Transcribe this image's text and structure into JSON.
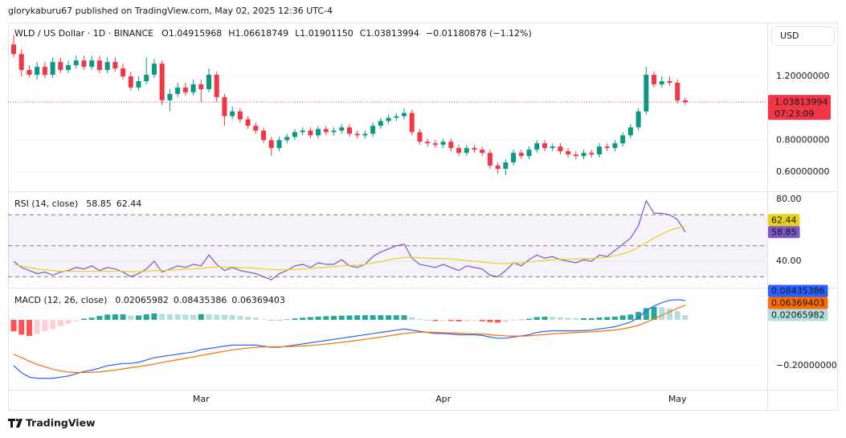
{
  "header": {
    "publisher_line": "glorykaburu67 published on TradingView.com, May 02, 2025 12:36 UTC-4"
  },
  "footer": {
    "brand": "TradingView"
  },
  "chart_data": [
    {
      "type": "candlestick",
      "title": "WLD / US Dollar · 1D · BINANCE",
      "currency": "USD",
      "legend": [
        {
          "prefix": "O",
          "label": "1.04915968"
        },
        {
          "prefix": "H",
          "label": "1.06618749"
        },
        {
          "prefix": "L",
          "label": "1.01901150"
        },
        {
          "prefix": "C",
          "label": "1.03813994"
        }
      ],
      "change": "−0.01180878 (−1.12%)",
      "countdown": "07:23:09",
      "categories": [
        null,
        null,
        null,
        null,
        null,
        null,
        null,
        null,
        null,
        null,
        null,
        null,
        null,
        null,
        null,
        null,
        null,
        null,
        null,
        null,
        null,
        null,
        null,
        null,
        "Mar",
        null,
        null,
        null,
        null,
        null,
        null,
        null,
        null,
        null,
        null,
        null,
        null,
        null,
        null,
        null,
        null,
        null,
        null,
        null,
        null,
        null,
        null,
        null,
        null,
        null,
        null,
        null,
        null,
        null,
        null,
        "Apr",
        null,
        null,
        null,
        null,
        null,
        null,
        null,
        null,
        null,
        null,
        null,
        null,
        null,
        null,
        null,
        null,
        null,
        null,
        null,
        null,
        null,
        null,
        null,
        null,
        null,
        null,
        null,
        null,
        null,
        "May",
        null
      ],
      "open": [
        1.4,
        1.34,
        1.24,
        1.21,
        1.26,
        1.21,
        1.29,
        1.24,
        1.27,
        1.3,
        1.26,
        1.3,
        1.24,
        1.29,
        1.25,
        1.2,
        1.13,
        1.17,
        1.21,
        1.28,
        1.05,
        1.09,
        1.13,
        1.1,
        1.15,
        1.12,
        1.21,
        1.07,
        0.95,
        0.98,
        0.93,
        0.89,
        0.86,
        0.8,
        0.75,
        0.8,
        0.82,
        0.85,
        0.86,
        0.83,
        0.87,
        0.85,
        0.86,
        0.88,
        0.84,
        0.83,
        0.84,
        0.89,
        0.92,
        0.94,
        0.95,
        0.97,
        0.85,
        0.79,
        0.78,
        0.77,
        0.79,
        0.75,
        0.72,
        0.75,
        0.74,
        0.72,
        0.64,
        0.62,
        0.66,
        0.72,
        0.7,
        0.74,
        0.78,
        0.75,
        0.76,
        0.73,
        0.71,
        0.7,
        0.72,
        0.71,
        0.76,
        0.75,
        0.78,
        0.83,
        0.88,
        0.98,
        1.21,
        1.15,
        1.17,
        1.16,
        1.04915968
      ],
      "high": [
        1.46,
        1.37,
        1.27,
        1.29,
        1.29,
        1.32,
        1.32,
        1.3,
        1.33,
        1.33,
        1.33,
        1.33,
        1.32,
        1.32,
        1.28,
        1.23,
        1.2,
        1.32,
        1.31,
        1.3,
        1.12,
        1.16,
        1.16,
        1.18,
        1.18,
        1.25,
        1.23,
        1.09,
        1.01,
        1.0,
        0.95,
        0.91,
        0.88,
        0.82,
        0.82,
        0.84,
        0.87,
        0.88,
        0.88,
        0.89,
        0.89,
        0.88,
        0.9,
        0.9,
        0.86,
        0.86,
        0.91,
        0.94,
        0.96,
        0.97,
        1.0,
        0.99,
        0.87,
        0.81,
        0.8,
        0.81,
        0.81,
        0.77,
        0.77,
        0.77,
        0.76,
        0.74,
        0.66,
        0.68,
        0.74,
        0.74,
        0.76,
        0.8,
        0.8,
        0.78,
        0.78,
        0.75,
        0.73,
        0.74,
        0.74,
        0.78,
        0.78,
        0.8,
        0.85,
        0.9,
        1.0,
        1.26,
        1.23,
        1.2,
        1.2,
        1.18,
        1.06618749
      ],
      "low": [
        1.32,
        1.2,
        1.19,
        1.18,
        1.19,
        1.19,
        1.22,
        1.22,
        1.25,
        1.24,
        1.24,
        1.22,
        1.22,
        1.23,
        1.18,
        1.11,
        1.11,
        1.15,
        1.19,
        1.02,
        0.98,
        1.07,
        1.08,
        1.08,
        1.04,
        1.1,
        1.04,
        0.89,
        0.93,
        0.91,
        0.87,
        0.84,
        0.78,
        0.7,
        0.73,
        0.78,
        0.8,
        0.83,
        0.81,
        0.81,
        0.83,
        0.83,
        0.84,
        0.82,
        0.81,
        0.81,
        0.82,
        0.87,
        0.9,
        0.92,
        0.93,
        0.83,
        0.77,
        0.76,
        0.75,
        0.75,
        0.73,
        0.7,
        0.7,
        0.72,
        0.7,
        0.62,
        0.59,
        0.58,
        0.64,
        0.68,
        0.68,
        0.72,
        0.73,
        0.73,
        0.71,
        0.69,
        0.68,
        0.68,
        0.69,
        0.69,
        0.73,
        0.73,
        0.76,
        0.81,
        0.86,
        0.96,
        1.13,
        1.13,
        1.14,
        1.03,
        1.0190115
      ],
      "close": [
        1.34,
        1.24,
        1.21,
        1.26,
        1.21,
        1.29,
        1.24,
        1.27,
        1.3,
        1.26,
        1.3,
        1.24,
        1.29,
        1.25,
        1.2,
        1.13,
        1.17,
        1.21,
        1.28,
        1.05,
        1.09,
        1.13,
        1.1,
        1.15,
        1.12,
        1.21,
        1.07,
        0.95,
        0.98,
        0.93,
        0.89,
        0.86,
        0.8,
        0.75,
        0.8,
        0.82,
        0.85,
        0.86,
        0.83,
        0.87,
        0.85,
        0.86,
        0.88,
        0.84,
        0.83,
        0.84,
        0.89,
        0.92,
        0.94,
        0.95,
        0.97,
        0.85,
        0.79,
        0.78,
        0.77,
        0.79,
        0.75,
        0.72,
        0.75,
        0.74,
        0.72,
        0.64,
        0.62,
        0.66,
        0.72,
        0.7,
        0.74,
        0.78,
        0.75,
        0.76,
        0.73,
        0.71,
        0.7,
        0.72,
        0.71,
        0.76,
        0.75,
        0.78,
        0.83,
        0.88,
        0.98,
        1.21,
        1.15,
        1.17,
        1.16,
        1.049,
        1.03813994
      ],
      "colors": {
        "up": "#089981",
        "down": "#f23645"
      },
      "ylim": [
        0.479,
        1.538
      ],
      "yticks": [
        {
          "value": 1.2,
          "label": "1.20000000"
        },
        {
          "value": 0.8,
          "label": "0.80000000"
        },
        {
          "value": 0.6,
          "label": "0.60000000"
        }
      ],
      "grid": true
    },
    {
      "type": "line",
      "title": "RSI (14, close)",
      "series": [
        {
          "color": "#7e57c2",
          "style": "line",
          "values": [
            40,
            36,
            34,
            32,
            33,
            31,
            33,
            34,
            36,
            35,
            37,
            34,
            36,
            35,
            33,
            30,
            32,
            35,
            40,
            33,
            35,
            37,
            36,
            38,
            37,
            44,
            38,
            34,
            36,
            34,
            33,
            32,
            30,
            28,
            32,
            34,
            37,
            38,
            36,
            39,
            38,
            38,
            41,
            37,
            36,
            38,
            43,
            46,
            48,
            50,
            51,
            42,
            38,
            37,
            36,
            38,
            36,
            34,
            37,
            36,
            35,
            31,
            30,
            34,
            39,
            37,
            41,
            44,
            42,
            43,
            41,
            40,
            39,
            41,
            40,
            44,
            43,
            47,
            51,
            55,
            63,
            79,
            71,
            71,
            70,
            67,
            58.85
          ]
        },
        {
          "color": "#e8d31a",
          "style": "line",
          "values": [
            38,
            37,
            36,
            35,
            34.5,
            34,
            33.5,
            33.5,
            33.5,
            33.5,
            33.5,
            33.5,
            33.5,
            33.5,
            33.5,
            33.3,
            33.2,
            33.5,
            34,
            34,
            34.2,
            34.5,
            34.8,
            35,
            35.3,
            36,
            36.3,
            36.2,
            36.2,
            36,
            35.8,
            35.5,
            35,
            34.6,
            34.5,
            34.5,
            34.7,
            35,
            35.2,
            35.8,
            36.2,
            36.5,
            37,
            37.3,
            37.5,
            38,
            38.8,
            39.8,
            40.8,
            41.8,
            42.5,
            42.5,
            42.3,
            42,
            41.8,
            41.8,
            41.5,
            41,
            40.5,
            40,
            39.5,
            39,
            38.5,
            38.5,
            38.8,
            39,
            39.5,
            40,
            40.5,
            41,
            41.2,
            41.3,
            41.4,
            41.6,
            41.8,
            42.2,
            42.6,
            43.5,
            44.8,
            46.5,
            49,
            52,
            55,
            57.5,
            60,
            61.5,
            62.44
          ]
        }
      ],
      "levels": [
        70,
        50,
        30
      ],
      "band_color": "#7e57c2",
      "ylim": [
        22.9,
        85.2
      ],
      "yticks": [
        {
          "value": 80,
          "label": "80.00"
        },
        {
          "value": 40,
          "label": "40.00"
        }
      ],
      "grid": true
    },
    {
      "type": "line",
      "title": "MACD (12, 26, close)",
      "series": [
        {
          "style": "histogram",
          "colors": {
            "grow_above": "#26a69a",
            "fall_above": "#b2dfdb",
            "grow_below": "#ff5252",
            "fall_below": "#ffcdd2"
          },
          "values": [
            -0.05,
            -0.065,
            -0.07,
            -0.06,
            -0.05,
            -0.04,
            -0.028,
            -0.017,
            -0.005,
            0.005,
            0.009,
            0.017,
            0.023,
            0.024,
            0.024,
            0.019,
            0.019,
            0.024,
            0.028,
            0.026,
            0.025,
            0.024,
            0.023,
            0.022,
            0.025,
            0.024,
            0.023,
            0.022,
            0.021,
            0.017,
            0.013,
            0.01,
            0.003,
            -0.002,
            -0.002,
            0.002,
            0.006,
            0.009,
            0.012,
            0.014,
            0.016,
            0.017,
            0.018,
            0.019,
            0.02,
            0.02,
            0.02,
            0.02,
            0.02,
            0.02,
            0.02,
            0.011,
            0.004,
            -0.001,
            -0.005,
            -0.004,
            -0.005,
            -0.007,
            -0.005,
            -0.004,
            -0.006,
            -0.01,
            -0.012,
            -0.01,
            -0.004,
            0.001,
            0.005,
            0.012,
            0.014,
            0.013,
            0.011,
            0.009,
            0.007,
            0.007,
            0.007,
            0.01,
            0.012,
            0.014,
            0.019,
            0.023,
            0.034,
            0.051,
            0.056,
            0.055,
            0.05,
            0.038,
            0.02065982
          ]
        },
        {
          "color": "#2962ff",
          "style": "line",
          "values": [
            -0.2,
            -0.23,
            -0.25,
            -0.255,
            -0.255,
            -0.255,
            -0.25,
            -0.245,
            -0.235,
            -0.225,
            -0.22,
            -0.21,
            -0.2,
            -0.195,
            -0.19,
            -0.19,
            -0.185,
            -0.175,
            -0.165,
            -0.16,
            -0.155,
            -0.15,
            -0.145,
            -0.14,
            -0.13,
            -0.125,
            -0.12,
            -0.115,
            -0.11,
            -0.11,
            -0.11,
            -0.11,
            -0.115,
            -0.12,
            -0.12,
            -0.115,
            -0.11,
            -0.105,
            -0.1,
            -0.095,
            -0.09,
            -0.085,
            -0.08,
            -0.075,
            -0.07,
            -0.065,
            -0.06,
            -0.055,
            -0.05,
            -0.045,
            -0.04,
            -0.045,
            -0.05,
            -0.055,
            -0.06,
            -0.06,
            -0.062,
            -0.065,
            -0.065,
            -0.065,
            -0.068,
            -0.075,
            -0.08,
            -0.08,
            -0.075,
            -0.07,
            -0.065,
            -0.055,
            -0.05,
            -0.048,
            -0.048,
            -0.048,
            -0.048,
            -0.047,
            -0.045,
            -0.04,
            -0.035,
            -0.03,
            -0.02,
            -0.01,
            0.01,
            0.04,
            0.06,
            0.075,
            0.085,
            0.088,
            0.08435386
          ]
        },
        {
          "color": "#ff6d00",
          "style": "line",
          "values": [
            -0.15,
            -0.165,
            -0.18,
            -0.195,
            -0.205,
            -0.215,
            -0.222,
            -0.228,
            -0.23,
            -0.23,
            -0.229,
            -0.227,
            -0.223,
            -0.219,
            -0.214,
            -0.209,
            -0.204,
            -0.199,
            -0.193,
            -0.186,
            -0.18,
            -0.174,
            -0.168,
            -0.162,
            -0.155,
            -0.149,
            -0.143,
            -0.137,
            -0.131,
            -0.127,
            -0.123,
            -0.12,
            -0.118,
            -0.118,
            -0.118,
            -0.117,
            -0.116,
            -0.114,
            -0.112,
            -0.109,
            -0.106,
            -0.102,
            -0.098,
            -0.094,
            -0.09,
            -0.085,
            -0.08,
            -0.075,
            -0.07,
            -0.065,
            -0.06,
            -0.056,
            -0.054,
            -0.054,
            -0.055,
            -0.056,
            -0.057,
            -0.058,
            -0.06,
            -0.061,
            -0.062,
            -0.065,
            -0.068,
            -0.07,
            -0.071,
            -0.071,
            -0.07,
            -0.067,
            -0.064,
            -0.061,
            -0.059,
            -0.057,
            -0.055,
            -0.054,
            -0.052,
            -0.05,
            -0.047,
            -0.044,
            -0.039,
            -0.033,
            -0.024,
            -0.011,
            0.004,
            0.02,
            0.035,
            0.05,
            0.06369403
          ]
        }
      ],
      "ylim": [
        -0.305,
        0.14
      ],
      "yticks": [
        {
          "value": -0.2,
          "label": "−0.20000000"
        }
      ],
      "grid": true
    }
  ]
}
